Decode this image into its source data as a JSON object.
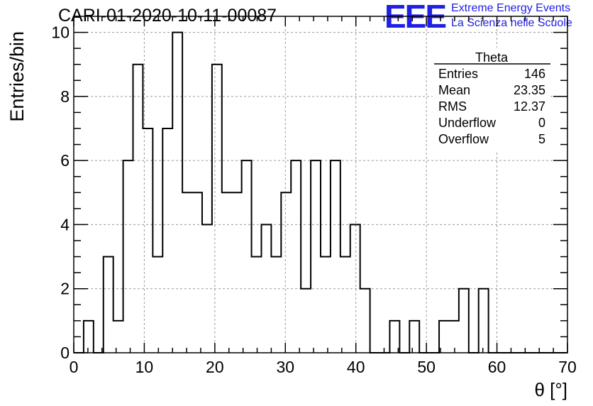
{
  "header": {
    "title": "CARI-01-2020-10-11-00087",
    "logo_text": "EEE",
    "logo_line1": "Extreme Energy Events",
    "logo_line2": "La Scienza nelle Scuole",
    "logo_color": "#1f1fe6"
  },
  "stats": {
    "title": "Theta",
    "rows": [
      {
        "label": "Entries",
        "value": "146"
      },
      {
        "label": "Mean",
        "value": "23.35"
      },
      {
        "label": "RMS",
        "value": "12.37"
      },
      {
        "label": "Underflow",
        "value": "0"
      },
      {
        "label": "Overflow",
        "value": "5"
      }
    ]
  },
  "chart_data": {
    "type": "bar",
    "title": "CARI-01-2020-10-11-00087",
    "xlabel": "θ [°]",
    "ylabel": "Entries/bin",
    "xlim": [
      0,
      70
    ],
    "ylim": [
      0,
      10.5
    ],
    "bin_width": 1.4,
    "bin_edges_start": 0,
    "x_ticks": [
      0,
      10,
      20,
      30,
      40,
      50,
      60,
      70
    ],
    "y_ticks": [
      0,
      2,
      4,
      6,
      8,
      10
    ],
    "grid": true,
    "values": [
      0,
      1,
      0,
      3,
      1,
      6,
      9,
      7,
      3,
      7,
      10,
      5,
      5,
      4,
      9,
      5,
      5,
      6,
      3,
      4,
      3,
      5,
      6,
      2,
      6,
      3,
      6,
      3,
      4,
      2,
      0,
      0,
      1,
      0,
      1,
      0,
      0,
      1,
      1,
      2,
      0,
      2,
      0,
      0,
      0,
      0,
      0,
      0,
      0,
      0
    ],
    "color": "#000000"
  }
}
